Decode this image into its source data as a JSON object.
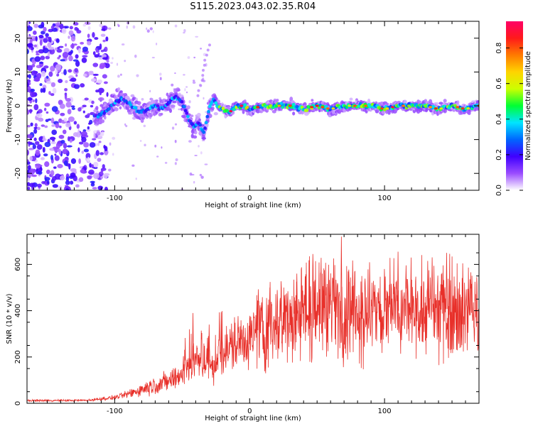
{
  "title": "S115.2023.043.02.35.R04",
  "chart_data": [
    {
      "type": "heatmap",
      "xlabel": "Height of straight line (km)",
      "ylabel": "Frequency (Hz)",
      "xlim": [
        -165,
        170
      ],
      "ylim": [
        -25,
        25
      ],
      "x_ticks": [
        -100,
        0,
        100
      ],
      "y_ticks": [
        -20,
        -10,
        0,
        10,
        20
      ],
      "colorbar": {
        "label": "Normalized spectral amplitude",
        "range": [
          0.0,
          0.95
        ],
        "ticks": [
          0.0,
          0.2,
          0.4,
          0.6,
          0.8
        ],
        "colors": [
          "#ffffff",
          "#9b4dff",
          "#3f00ff",
          "#0066ff",
          "#00e5ff",
          "#00ff33",
          "#ccff00",
          "#ffd400",
          "#ff7a00",
          "#ff1a1a",
          "#ff0066"
        ]
      },
      "ridge": {
        "x": [
          -112,
          -105,
          -100,
          -95,
          -90,
          -85,
          -80,
          -75,
          -70,
          -65,
          -60,
          -55,
          -50,
          -45,
          -42,
          -38,
          -34,
          -30,
          -27,
          -24,
          -20,
          -15,
          -10,
          -5,
          0,
          10,
          20,
          30,
          40,
          50,
          60,
          70,
          80,
          90,
          100,
          110,
          120,
          130,
          140,
          150,
          160,
          168
        ],
        "y": [
          -3,
          -1,
          1,
          2,
          1,
          -1,
          -2,
          -1,
          0,
          -1,
          1,
          3,
          1,
          -4,
          -6,
          -5,
          -8,
          -1,
          2,
          0,
          -1,
          -2,
          0,
          0,
          -1,
          0,
          0,
          0,
          -1,
          0,
          -1,
          0,
          0,
          0,
          -1,
          0,
          0,
          0,
          -1,
          0,
          -1,
          0
        ]
      }
    },
    {
      "type": "line",
      "xlabel": "Height of straight line (km)",
      "ylabel": "SNR (10 * v/v)",
      "xlim": [
        -165,
        170
      ],
      "ylim": [
        0,
        730
      ],
      "x_ticks": [
        -100,
        0,
        100
      ],
      "y_ticks": [
        0,
        200,
        400,
        600
      ],
      "series": [
        {
          "color": "#e8302a",
          "envelope_x": [
            -165,
            -140,
            -120,
            -100,
            -90,
            -80,
            -70,
            -60,
            -55,
            -50,
            -45,
            -40,
            -35,
            -30,
            -25,
            -22,
            -20,
            -15,
            -10,
            -5,
            0,
            5,
            10,
            15,
            20,
            25,
            30,
            35,
            40,
            45,
            50,
            55,
            60,
            65,
            70,
            80,
            90,
            100,
            110,
            120,
            130,
            140,
            150,
            160,
            170
          ],
          "envelope_y": [
            12,
            12,
            13,
            25,
            40,
            60,
            80,
            95,
            110,
            130,
            170,
            190,
            170,
            180,
            150,
            200,
            210,
            240,
            260,
            270,
            290,
            310,
            320,
            340,
            350,
            370,
            380,
            390,
            400,
            405,
            410,
            415,
            420,
            415,
            410,
            405,
            400,
            395,
            400,
            405,
            400,
            410,
            405,
            400,
            410
          ]
        }
      ],
      "peaks": [
        {
          "x": 68,
          "y": 720
        },
        {
          "x": 110,
          "y": 655
        },
        {
          "x": 146,
          "y": 650
        },
        {
          "x": 132,
          "y": 615
        },
        {
          "x": -42,
          "y": 390
        },
        {
          "x": -30,
          "y": 340
        },
        {
          "x": 35,
          "y": 560
        },
        {
          "x": 15,
          "y": 500
        }
      ]
    }
  ]
}
